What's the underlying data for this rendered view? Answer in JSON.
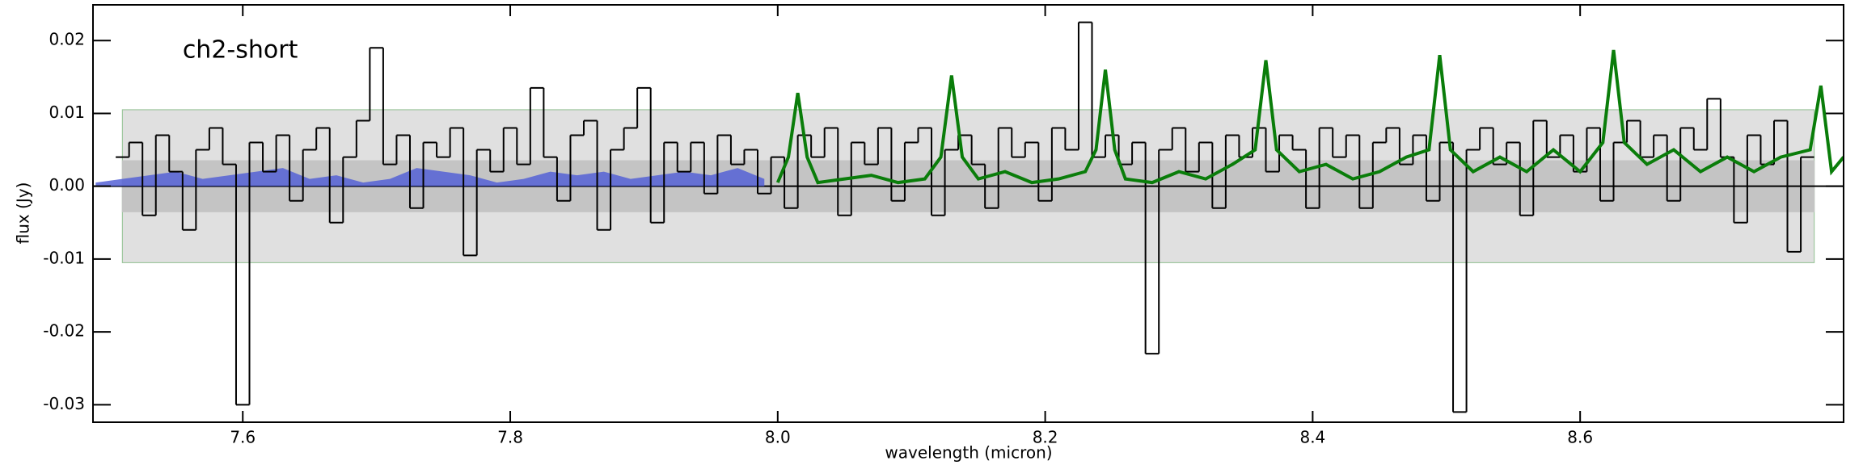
{
  "chart_data": {
    "type": "line",
    "annotation": "ch2-short",
    "annotation_pos": [
      7.555,
      0.02
    ],
    "xlabel": "wavelength (micron)",
    "ylabel": "flux (Jy)",
    "xlim": [
      7.488,
      8.797
    ],
    "ylim": [
      -0.0324,
      0.0249
    ],
    "xticks": [
      7.6,
      7.8,
      {
        "value": 8.0,
        "label": "8.0"
      },
      8.2,
      8.4,
      8.6
    ],
    "yticks": [
      0.02,
      0.01,
      {
        "value": 0,
        "label": "0.00"
      },
      -0.01,
      -0.02,
      -0.03
    ],
    "zero_line": true,
    "bands": [
      {
        "xmin": 7.51,
        "xmax": 8.775,
        "ymin": -0.0105,
        "ymax": 0.0105,
        "color": "#e0e0e0",
        "edge": "#9fc79f"
      },
      {
        "xmin": 7.51,
        "xmax": 8.775,
        "ymin": -0.0035,
        "ymax": 0.0035,
        "color": "#c4c4c4",
        "edge": "#c4c4c4"
      }
    ],
    "series": [
      {
        "kind": "area",
        "color": "#5561d6",
        "x": [
          7.49,
          7.51,
          7.53,
          7.55,
          7.57,
          7.59,
          7.61,
          7.63,
          7.65,
          7.67,
          7.69,
          7.71,
          7.73,
          7.75,
          7.77,
          7.79,
          7.81,
          7.83,
          7.85,
          7.87,
          7.89,
          7.91,
          7.93,
          7.95,
          7.97,
          7.99
        ],
        "values": [
          0.0005,
          0.001,
          0.0015,
          0.002,
          0.001,
          0.0015,
          0.002,
          0.0025,
          0.001,
          0.0015,
          0.0005,
          0.001,
          0.0025,
          0.002,
          0.0015,
          0.0005,
          0.001,
          0.002,
          0.0015,
          0.002,
          0.001,
          0.0015,
          0.002,
          0.0015,
          0.0025,
          0.001
        ]
      },
      {
        "kind": "steps",
        "color": "#000000",
        "x": [
          7.51,
          7.52,
          7.53,
          7.54,
          7.55,
          7.56,
          7.57,
          7.58,
          7.59,
          7.6,
          7.61,
          7.62,
          7.63,
          7.64,
          7.65,
          7.66,
          7.67,
          7.68,
          7.69,
          7.7,
          7.71,
          7.72,
          7.73,
          7.74,
          7.75,
          7.76,
          7.77,
          7.78,
          7.79,
          7.8,
          7.81,
          7.82,
          7.83,
          7.84,
          7.85,
          7.86,
          7.87,
          7.88,
          7.89,
          7.9,
          7.91,
          7.92,
          7.93,
          7.94,
          7.95,
          7.96,
          7.97,
          7.98,
          7.99,
          8.0,
          8.01,
          8.02,
          8.03,
          8.04,
          8.05,
          8.06,
          8.07,
          8.08,
          8.09,
          8.1,
          8.11,
          8.12,
          8.13,
          8.14,
          8.15,
          8.16,
          8.17,
          8.18,
          8.19,
          8.2,
          8.21,
          8.22,
          8.23,
          8.24,
          8.25,
          8.26,
          8.27,
          8.28,
          8.29,
          8.3,
          8.31,
          8.32,
          8.33,
          8.34,
          8.35,
          8.36,
          8.37,
          8.38,
          8.39,
          8.4,
          8.41,
          8.42,
          8.43,
          8.44,
          8.45,
          8.46,
          8.47,
          8.48,
          8.49,
          8.5,
          8.51,
          8.52,
          8.53,
          8.54,
          8.55,
          8.56,
          8.57,
          8.58,
          8.59,
          8.6,
          8.61,
          8.62,
          8.63,
          8.64,
          8.65,
          8.66,
          8.67,
          8.68,
          8.69,
          8.7,
          8.71,
          8.72,
          8.73,
          8.74,
          8.75,
          8.76,
          8.77
        ],
        "values": [
          0.004,
          0.006,
          -0.004,
          0.007,
          0.002,
          -0.006,
          0.005,
          0.008,
          0.003,
          -0.03,
          0.006,
          0.002,
          0.007,
          -0.002,
          0.005,
          0.008,
          -0.005,
          0.004,
          0.009,
          0.019,
          0.003,
          0.007,
          -0.003,
          0.006,
          0.004,
          0.008,
          -0.0095,
          0.005,
          0.002,
          0.008,
          0.003,
          0.0135,
          0.004,
          -0.002,
          0.007,
          0.009,
          -0.006,
          0.005,
          0.008,
          0.0135,
          -0.005,
          0.006,
          0.002,
          0.006,
          -0.001,
          0.007,
          0.003,
          0.005,
          -0.001,
          0.004,
          -0.003,
          0.007,
          0.004,
          0.008,
          -0.004,
          0.006,
          0.003,
          0.008,
          -0.002,
          0.006,
          0.008,
          -0.004,
          0.005,
          0.007,
          0.003,
          -0.003,
          0.008,
          0.004,
          0.006,
          -0.002,
          0.008,
          0.005,
          0.0225,
          0.004,
          0.007,
          0.003,
          0.006,
          -0.023,
          0.005,
          0.008,
          0.002,
          0.006,
          -0.003,
          0.007,
          0.004,
          0.008,
          0.002,
          0.007,
          0.005,
          -0.003,
          0.008,
          0.004,
          0.007,
          -0.003,
          0.006,
          0.008,
          0.003,
          0.007,
          -0.002,
          0.006,
          -0.031,
          0.005,
          0.008,
          0.003,
          0.006,
          -0.004,
          0.009,
          0.004,
          0.007,
          0.002,
          0.008,
          -0.002,
          0.006,
          0.009,
          0.004,
          0.007,
          -0.002,
          0.008,
          0.005,
          0.012,
          0.004,
          -0.005,
          0.007,
          0.003,
          0.009,
          -0.009,
          0.004
        ]
      },
      {
        "kind": "line",
        "color": "#0a7d0a",
        "x": [
          8.0,
          8.008,
          8.015,
          8.022,
          8.03,
          8.05,
          8.07,
          8.09,
          8.11,
          8.122,
          8.13,
          8.138,
          8.15,
          8.17,
          8.19,
          8.21,
          8.23,
          8.238,
          8.245,
          8.252,
          8.26,
          8.28,
          8.3,
          8.32,
          8.34,
          8.357,
          8.365,
          8.373,
          8.39,
          8.41,
          8.43,
          8.45,
          8.47,
          8.487,
          8.495,
          8.503,
          8.52,
          8.54,
          8.56,
          8.58,
          8.6,
          8.617,
          8.625,
          8.633,
          8.65,
          8.67,
          8.69,
          8.71,
          8.73,
          8.75,
          8.772,
          8.78,
          8.788,
          8.797
        ],
        "values": [
          0.0005,
          0.004,
          0.0128,
          0.004,
          0.0005,
          0.001,
          0.0015,
          0.0005,
          0.001,
          0.004,
          0.0152,
          0.004,
          0.001,
          0.002,
          0.0005,
          0.001,
          0.002,
          0.005,
          0.016,
          0.005,
          0.001,
          0.0005,
          0.002,
          0.001,
          0.003,
          0.005,
          0.0173,
          0.005,
          0.002,
          0.003,
          0.001,
          0.002,
          0.004,
          0.005,
          0.018,
          0.005,
          0.002,
          0.004,
          0.002,
          0.005,
          0.002,
          0.006,
          0.0187,
          0.006,
          0.003,
          0.005,
          0.002,
          0.004,
          0.002,
          0.004,
          0.005,
          0.0138,
          0.002,
          0.004
        ]
      }
    ]
  }
}
